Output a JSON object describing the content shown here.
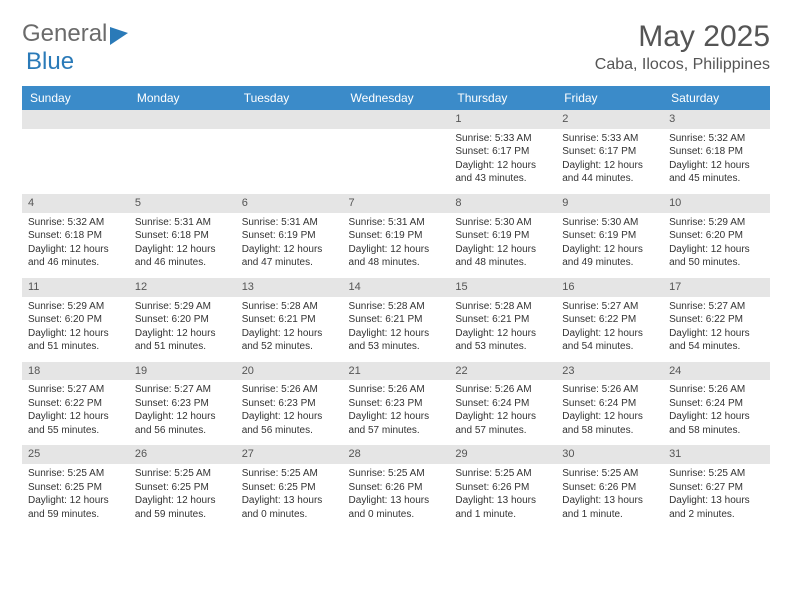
{
  "logo": {
    "part1": "General",
    "part2": "Blue"
  },
  "title": "May 2025",
  "location": "Caba, Ilocos, Philippines",
  "calendar": {
    "header_bg": "#3b8bc9",
    "daynum_bg": "#e5e5e5",
    "weekdays": [
      "Sunday",
      "Monday",
      "Tuesday",
      "Wednesday",
      "Thursday",
      "Friday",
      "Saturday"
    ],
    "weeks": [
      {
        "nums": [
          "",
          "",
          "",
          "",
          "1",
          "2",
          "3"
        ],
        "cells": [
          null,
          null,
          null,
          null,
          {
            "sunrise": "Sunrise: 5:33 AM",
            "sunset": "Sunset: 6:17 PM",
            "day1": "Daylight: 12 hours",
            "day2": "and 43 minutes."
          },
          {
            "sunrise": "Sunrise: 5:33 AM",
            "sunset": "Sunset: 6:17 PM",
            "day1": "Daylight: 12 hours",
            "day2": "and 44 minutes."
          },
          {
            "sunrise": "Sunrise: 5:32 AM",
            "sunset": "Sunset: 6:18 PM",
            "day1": "Daylight: 12 hours",
            "day2": "and 45 minutes."
          }
        ]
      },
      {
        "nums": [
          "4",
          "5",
          "6",
          "7",
          "8",
          "9",
          "10"
        ],
        "cells": [
          {
            "sunrise": "Sunrise: 5:32 AM",
            "sunset": "Sunset: 6:18 PM",
            "day1": "Daylight: 12 hours",
            "day2": "and 46 minutes."
          },
          {
            "sunrise": "Sunrise: 5:31 AM",
            "sunset": "Sunset: 6:18 PM",
            "day1": "Daylight: 12 hours",
            "day2": "and 46 minutes."
          },
          {
            "sunrise": "Sunrise: 5:31 AM",
            "sunset": "Sunset: 6:19 PM",
            "day1": "Daylight: 12 hours",
            "day2": "and 47 minutes."
          },
          {
            "sunrise": "Sunrise: 5:31 AM",
            "sunset": "Sunset: 6:19 PM",
            "day1": "Daylight: 12 hours",
            "day2": "and 48 minutes."
          },
          {
            "sunrise": "Sunrise: 5:30 AM",
            "sunset": "Sunset: 6:19 PM",
            "day1": "Daylight: 12 hours",
            "day2": "and 48 minutes."
          },
          {
            "sunrise": "Sunrise: 5:30 AM",
            "sunset": "Sunset: 6:19 PM",
            "day1": "Daylight: 12 hours",
            "day2": "and 49 minutes."
          },
          {
            "sunrise": "Sunrise: 5:29 AM",
            "sunset": "Sunset: 6:20 PM",
            "day1": "Daylight: 12 hours",
            "day2": "and 50 minutes."
          }
        ]
      },
      {
        "nums": [
          "11",
          "12",
          "13",
          "14",
          "15",
          "16",
          "17"
        ],
        "cells": [
          {
            "sunrise": "Sunrise: 5:29 AM",
            "sunset": "Sunset: 6:20 PM",
            "day1": "Daylight: 12 hours",
            "day2": "and 51 minutes."
          },
          {
            "sunrise": "Sunrise: 5:29 AM",
            "sunset": "Sunset: 6:20 PM",
            "day1": "Daylight: 12 hours",
            "day2": "and 51 minutes."
          },
          {
            "sunrise": "Sunrise: 5:28 AM",
            "sunset": "Sunset: 6:21 PM",
            "day1": "Daylight: 12 hours",
            "day2": "and 52 minutes."
          },
          {
            "sunrise": "Sunrise: 5:28 AM",
            "sunset": "Sunset: 6:21 PM",
            "day1": "Daylight: 12 hours",
            "day2": "and 53 minutes."
          },
          {
            "sunrise": "Sunrise: 5:28 AM",
            "sunset": "Sunset: 6:21 PM",
            "day1": "Daylight: 12 hours",
            "day2": "and 53 minutes."
          },
          {
            "sunrise": "Sunrise: 5:27 AM",
            "sunset": "Sunset: 6:22 PM",
            "day1": "Daylight: 12 hours",
            "day2": "and 54 minutes."
          },
          {
            "sunrise": "Sunrise: 5:27 AM",
            "sunset": "Sunset: 6:22 PM",
            "day1": "Daylight: 12 hours",
            "day2": "and 54 minutes."
          }
        ]
      },
      {
        "nums": [
          "18",
          "19",
          "20",
          "21",
          "22",
          "23",
          "24"
        ],
        "cells": [
          {
            "sunrise": "Sunrise: 5:27 AM",
            "sunset": "Sunset: 6:22 PM",
            "day1": "Daylight: 12 hours",
            "day2": "and 55 minutes."
          },
          {
            "sunrise": "Sunrise: 5:27 AM",
            "sunset": "Sunset: 6:23 PM",
            "day1": "Daylight: 12 hours",
            "day2": "and 56 minutes."
          },
          {
            "sunrise": "Sunrise: 5:26 AM",
            "sunset": "Sunset: 6:23 PM",
            "day1": "Daylight: 12 hours",
            "day2": "and 56 minutes."
          },
          {
            "sunrise": "Sunrise: 5:26 AM",
            "sunset": "Sunset: 6:23 PM",
            "day1": "Daylight: 12 hours",
            "day2": "and 57 minutes."
          },
          {
            "sunrise": "Sunrise: 5:26 AM",
            "sunset": "Sunset: 6:24 PM",
            "day1": "Daylight: 12 hours",
            "day2": "and 57 minutes."
          },
          {
            "sunrise": "Sunrise: 5:26 AM",
            "sunset": "Sunset: 6:24 PM",
            "day1": "Daylight: 12 hours",
            "day2": "and 58 minutes."
          },
          {
            "sunrise": "Sunrise: 5:26 AM",
            "sunset": "Sunset: 6:24 PM",
            "day1": "Daylight: 12 hours",
            "day2": "and 58 minutes."
          }
        ]
      },
      {
        "nums": [
          "25",
          "26",
          "27",
          "28",
          "29",
          "30",
          "31"
        ],
        "cells": [
          {
            "sunrise": "Sunrise: 5:25 AM",
            "sunset": "Sunset: 6:25 PM",
            "day1": "Daylight: 12 hours",
            "day2": "and 59 minutes."
          },
          {
            "sunrise": "Sunrise: 5:25 AM",
            "sunset": "Sunset: 6:25 PM",
            "day1": "Daylight: 12 hours",
            "day2": "and 59 minutes."
          },
          {
            "sunrise": "Sunrise: 5:25 AM",
            "sunset": "Sunset: 6:25 PM",
            "day1": "Daylight: 13 hours",
            "day2": "and 0 minutes."
          },
          {
            "sunrise": "Sunrise: 5:25 AM",
            "sunset": "Sunset: 6:26 PM",
            "day1": "Daylight: 13 hours",
            "day2": "and 0 minutes."
          },
          {
            "sunrise": "Sunrise: 5:25 AM",
            "sunset": "Sunset: 6:26 PM",
            "day1": "Daylight: 13 hours",
            "day2": "and 1 minute."
          },
          {
            "sunrise": "Sunrise: 5:25 AM",
            "sunset": "Sunset: 6:26 PM",
            "day1": "Daylight: 13 hours",
            "day2": "and 1 minute."
          },
          {
            "sunrise": "Sunrise: 5:25 AM",
            "sunset": "Sunset: 6:27 PM",
            "day1": "Daylight: 13 hours",
            "day2": "and 2 minutes."
          }
        ]
      }
    ]
  }
}
